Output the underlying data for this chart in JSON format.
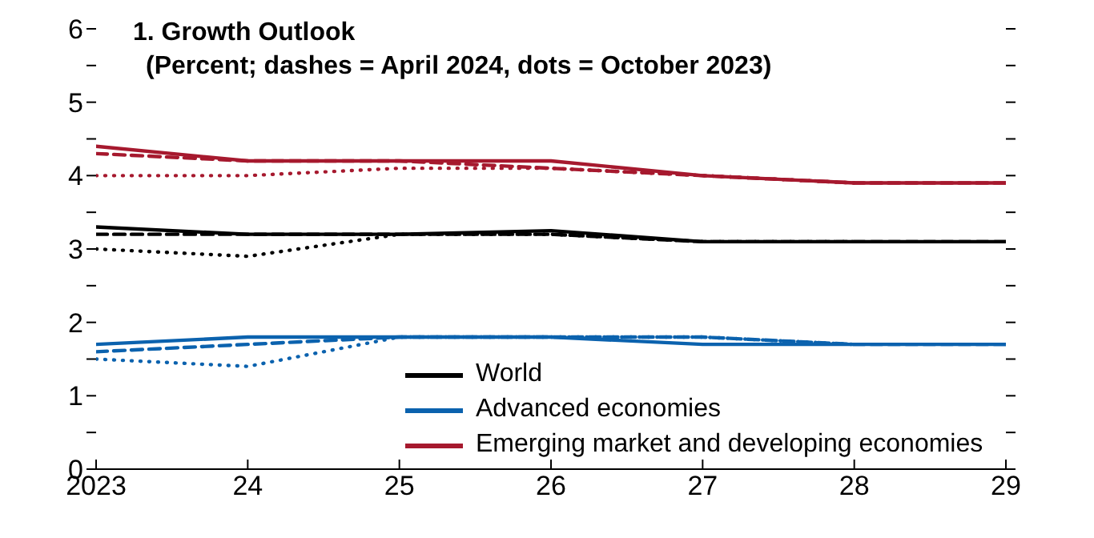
{
  "chart_data": {
    "type": "line",
    "title": "1. Growth Outlook",
    "subtitle": "(Percent; dashes = April 2024, dots = October 2023)",
    "x": [
      2023,
      2024,
      2025,
      2026,
      2027,
      2028,
      2029
    ],
    "xlim": [
      2023,
      2029
    ],
    "xticks": [
      2023,
      {
        "value": 2024,
        "label": "24"
      },
      {
        "value": 2025,
        "label": "25"
      },
      {
        "value": 2026,
        "label": "26"
      },
      {
        "value": 2027,
        "label": "27"
      },
      {
        "value": 2028,
        "label": "28"
      },
      {
        "value": 2029,
        "label": "29"
      }
    ],
    "ylim": [
      0,
      6
    ],
    "yticks": [
      0,
      {
        "value": 0.5,
        "label": null
      },
      1,
      {
        "value": 1.5,
        "label": null
      },
      2,
      {
        "value": 2.5,
        "label": null
      },
      3,
      {
        "value": 3.5,
        "label": null
      },
      4,
      {
        "value": 4.5,
        "label": null
      },
      5,
      {
        "value": 5.5,
        "label": null
      },
      6
    ],
    "grid": false,
    "legend": "bottom",
    "marker": "none",
    "series": [
      {
        "color": "#a6192e",
        "line_style": "dotted",
        "x": [
          2023,
          2024,
          2025,
          2026,
          2027,
          2028
        ],
        "values": [
          4.0,
          4.0,
          4.1,
          4.1,
          4.0,
          3.9
        ]
      },
      {
        "color": "#a6192e",
        "line_style": "dashed",
        "values": [
          4.3,
          4.2,
          4.2,
          4.1,
          4.0,
          3.9,
          3.9
        ]
      },
      {
        "color": "#000000",
        "line_style": "dotted",
        "x": [
          2023,
          2024,
          2025,
          2026,
          2027,
          2028
        ],
        "values": [
          3.0,
          2.9,
          3.2,
          3.2,
          3.1,
          3.1
        ]
      },
      {
        "color": "#000000",
        "line_style": "dashed",
        "values": [
          3.2,
          3.2,
          3.2,
          3.2,
          3.1,
          3.1,
          3.1
        ]
      },
      {
        "color": "#0b62ae",
        "line_style": "dotted",
        "x": [
          2023,
          2024,
          2025,
          2026,
          2027,
          2028
        ],
        "values": [
          1.5,
          1.4,
          1.8,
          1.8,
          1.8,
          1.7
        ]
      },
      {
        "color": "#0b62ae",
        "line_style": "dashed",
        "values": [
          1.6,
          1.7,
          1.8,
          1.8,
          1.8,
          1.7,
          1.7
        ]
      },
      {
        "name": "World",
        "color": "#000000",
        "line_style": "solid",
        "values": [
          3.3,
          3.2,
          3.2,
          3.25,
          3.1,
          3.1,
          3.1
        ]
      },
      {
        "name": "Advanced economies",
        "color": "#0b62ae",
        "line_style": "solid",
        "values": [
          1.7,
          1.8,
          1.8,
          1.8,
          1.7,
          1.7,
          1.7
        ]
      },
      {
        "name": "Emerging market and developing economies",
        "color": "#a6192e",
        "line_style": "solid",
        "values": [
          4.4,
          4.2,
          4.2,
          4.2,
          4.0,
          3.9,
          3.9
        ]
      }
    ]
  }
}
